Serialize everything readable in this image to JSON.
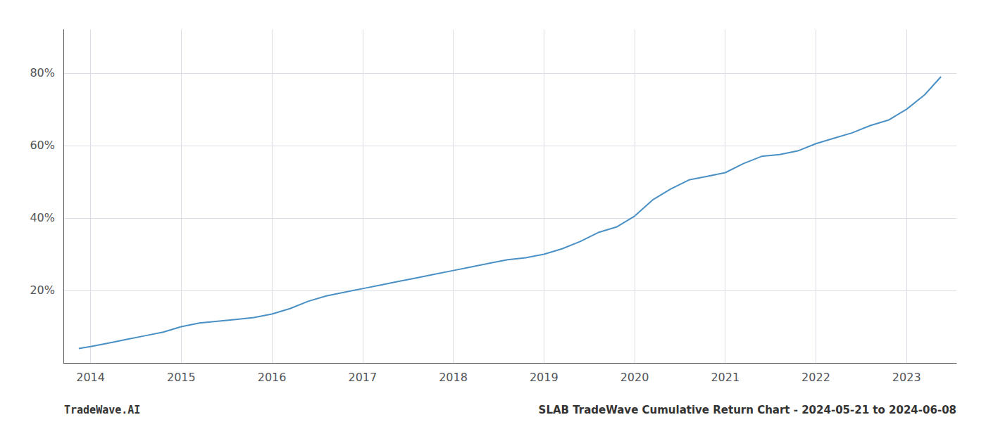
{
  "chart_data": {
    "type": "line",
    "title": "SLAB TradeWave Cumulative Return Chart - 2024-05-21 to 2024-06-08",
    "subtitle": "TradeWave.AI",
    "color": "#4a90c4",
    "x": [
      2013.87,
      2014.0,
      2014.2,
      2014.4,
      2014.6,
      2014.8,
      2015.0,
      2015.2,
      2015.4,
      2015.6,
      2015.8,
      2016.0,
      2016.2,
      2016.4,
      2016.6,
      2016.8,
      2017.0,
      2017.2,
      2017.4,
      2017.6,
      2017.8,
      2018.0,
      2018.2,
      2018.4,
      2018.6,
      2018.8,
      2019.0,
      2019.2,
      2019.4,
      2019.6,
      2019.8,
      2020.0,
      2020.2,
      2020.4,
      2020.6,
      2020.8,
      2021.0,
      2021.2,
      2021.4,
      2021.6,
      2021.8,
      2022.0,
      2022.2,
      2022.4,
      2022.6,
      2022.8,
      2023.0,
      2023.2,
      2023.38
    ],
    "values": [
      4.0,
      4.5,
      5.5,
      6.5,
      7.5,
      8.5,
      10.0,
      11.0,
      11.5,
      12.0,
      12.5,
      13.5,
      15.0,
      17.0,
      18.5,
      19.5,
      20.5,
      21.5,
      22.5,
      23.5,
      24.5,
      25.5,
      26.5,
      27.5,
      28.5,
      29.0,
      30.0,
      31.5,
      33.5,
      36.0,
      37.5,
      40.5,
      45.0,
      48.0,
      50.5,
      51.5,
      52.5,
      55.0,
      57.0,
      57.5,
      58.5,
      60.5,
      62.0,
      63.5,
      65.5,
      67.0,
      70.0,
      74.0,
      79.0
    ],
    "xlim": [
      2013.7,
      2023.55
    ],
    "ylim": [
      0,
      92
    ],
    "xticks": [
      2014,
      2015,
      2016,
      2017,
      2018,
      2019,
      2020,
      2021,
      2022,
      2023
    ],
    "yticks": [
      {
        "value": 20,
        "label": "20%"
      },
      {
        "value": 40,
        "label": "40%"
      },
      {
        "value": 60,
        "label": "60%"
      },
      {
        "value": 80,
        "label": "80%"
      }
    ],
    "grid": true
  }
}
